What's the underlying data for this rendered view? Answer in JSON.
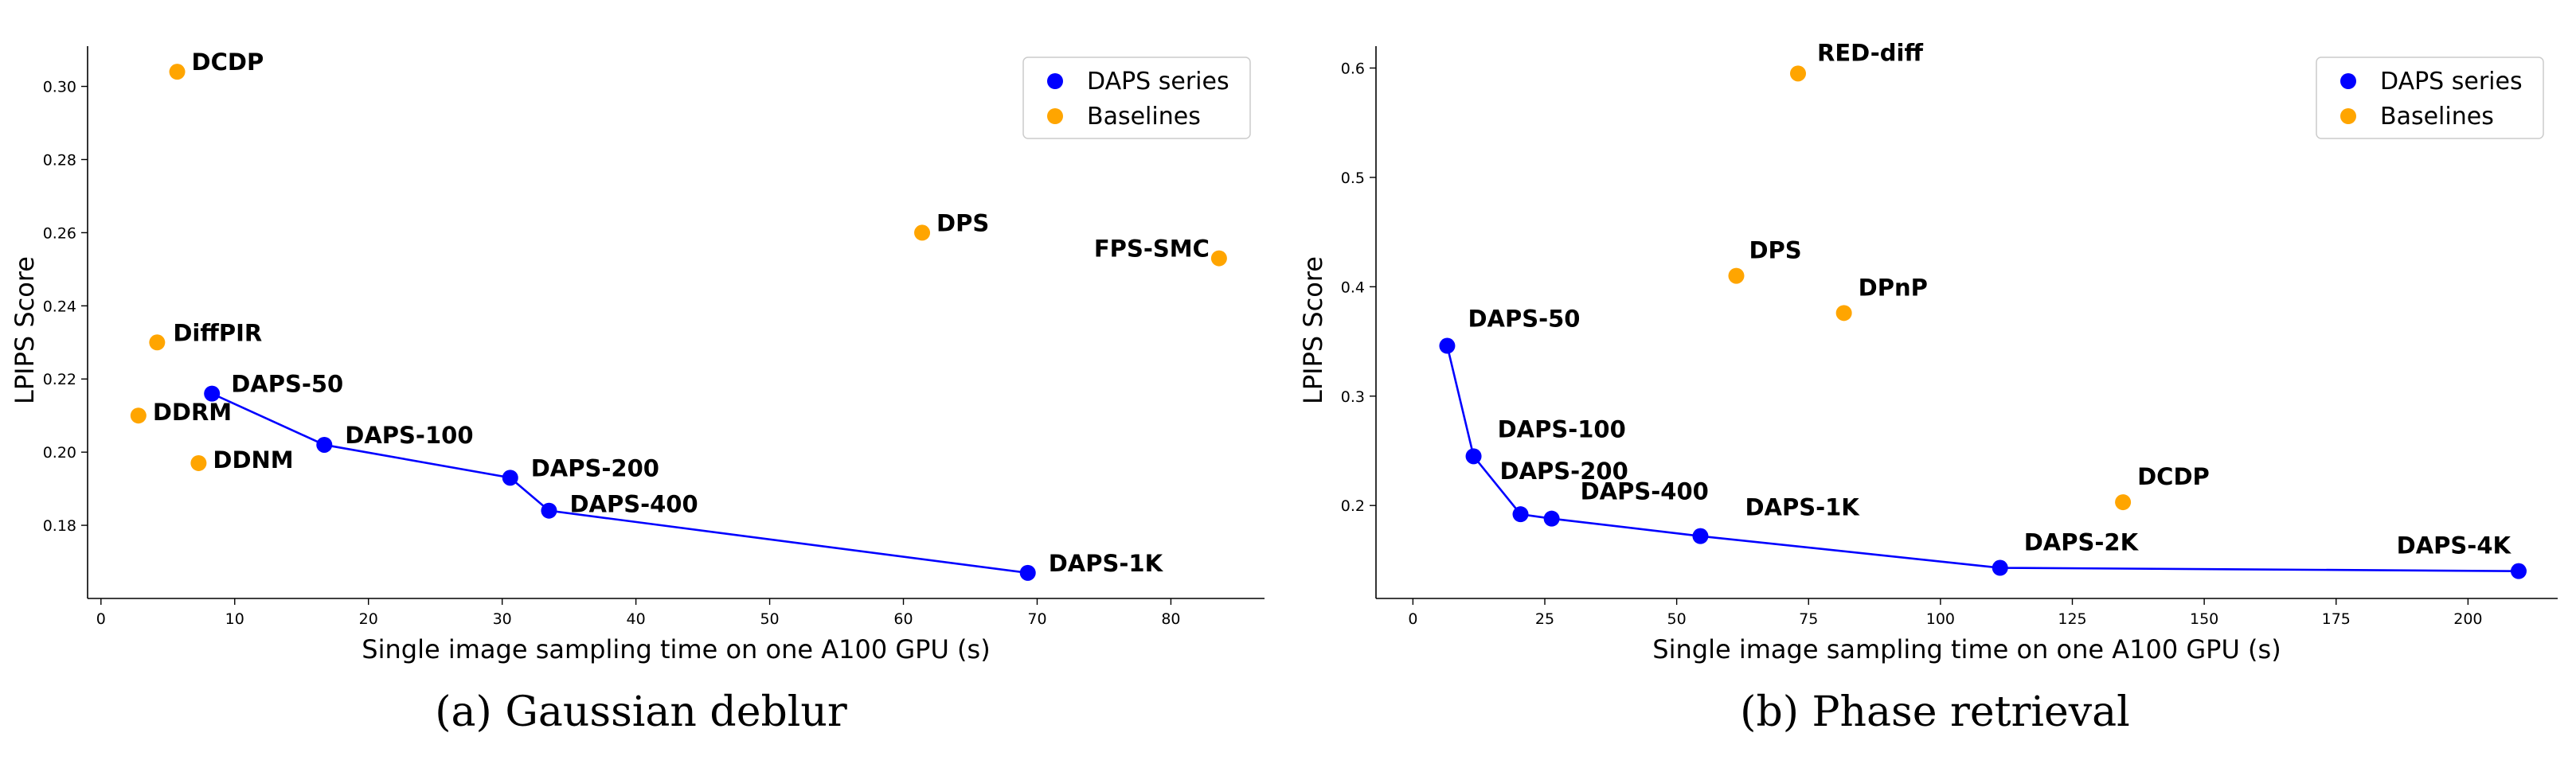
{
  "chart_data": [
    {
      "type": "scatter",
      "caption": "(a) Gaussian deblur",
      "xlabel": "Single image sampling time on one A100 GPU (s)",
      "ylabel": "LPIPS Score",
      "xlim": [
        -1,
        87
      ],
      "ylim": [
        0.16,
        0.311
      ],
      "xticks": [
        0,
        10,
        20,
        30,
        40,
        50,
        60,
        70,
        80
      ],
      "yticks": [
        0.18,
        0.2,
        0.22,
        0.24,
        0.26,
        0.28,
        0.3
      ],
      "ytick_decimals": 2,
      "grid": false,
      "legend_position": "top-right",
      "series": [
        {
          "name": "DAPS series",
          "color": "#0000ff",
          "connected": true,
          "points": [
            {
              "label": "DAPS-50",
              "x": 8.3,
              "y": 0.216
            },
            {
              "label": "DAPS-100",
              "x": 16.7,
              "y": 0.202
            },
            {
              "label": "DAPS-200",
              "x": 30.6,
              "y": 0.193
            },
            {
              "label": "DAPS-400",
              "x": 33.5,
              "y": 0.184
            },
            {
              "label": "DAPS-1K",
              "x": 69.3,
              "y": 0.167
            }
          ]
        },
        {
          "name": "Baselines",
          "color": "#ffa500",
          "connected": false,
          "points": [
            {
              "label": "DCDP",
              "x": 5.7,
              "y": 0.304
            },
            {
              "label": "DPS",
              "x": 61.4,
              "y": 0.26
            },
            {
              "label": "FPS-SMC",
              "x": 83.6,
              "y": 0.253
            },
            {
              "label": "DiffPIR",
              "x": 4.2,
              "y": 0.23
            },
            {
              "label": "DDRM",
              "x": 2.8,
              "y": 0.21
            },
            {
              "label": "DDNM",
              "x": 7.3,
              "y": 0.197
            }
          ]
        }
      ]
    },
    {
      "type": "scatter",
      "caption": "(b) Phase retrieval",
      "xlabel": "Single image sampling time on one A100 GPU (s)",
      "ylabel": "LPIPS Score",
      "xlim": [
        -7,
        217
      ],
      "ylim": [
        0.115,
        0.62
      ],
      "xticks": [
        0,
        25,
        50,
        75,
        100,
        125,
        150,
        175,
        200
      ],
      "yticks": [
        0.2,
        0.3,
        0.4,
        0.5,
        0.6
      ],
      "ytick_decimals": 1,
      "grid": false,
      "legend_position": "top-right",
      "series": [
        {
          "name": "DAPS series",
          "color": "#0000ff",
          "connected": true,
          "points": [
            {
              "label": "DAPS-50",
              "x": 6.5,
              "y": 0.346
            },
            {
              "label": "DAPS-100",
              "x": 11.5,
              "y": 0.245
            },
            {
              "label": "DAPS-200",
              "x": 20.4,
              "y": 0.192
            },
            {
              "label": "DAPS-400",
              "x": 26.3,
              "y": 0.188
            },
            {
              "label": "DAPS-1K",
              "x": 54.5,
              "y": 0.172
            },
            {
              "label": "DAPS-2K",
              "x": 111.3,
              "y": 0.143
            },
            {
              "label": "DAPS-4K",
              "x": 209.6,
              "y": 0.14
            }
          ]
        },
        {
          "name": "Baselines",
          "color": "#ffa500",
          "connected": false,
          "points": [
            {
              "label": "RED-diff",
              "x": 73.0,
              "y": 0.595
            },
            {
              "label": "DPS",
              "x": 61.3,
              "y": 0.41
            },
            {
              "label": "DPnP",
              "x": 81.7,
              "y": 0.376
            },
            {
              "label": "DCDP",
              "x": 134.6,
              "y": 0.203
            }
          ]
        }
      ]
    }
  ]
}
